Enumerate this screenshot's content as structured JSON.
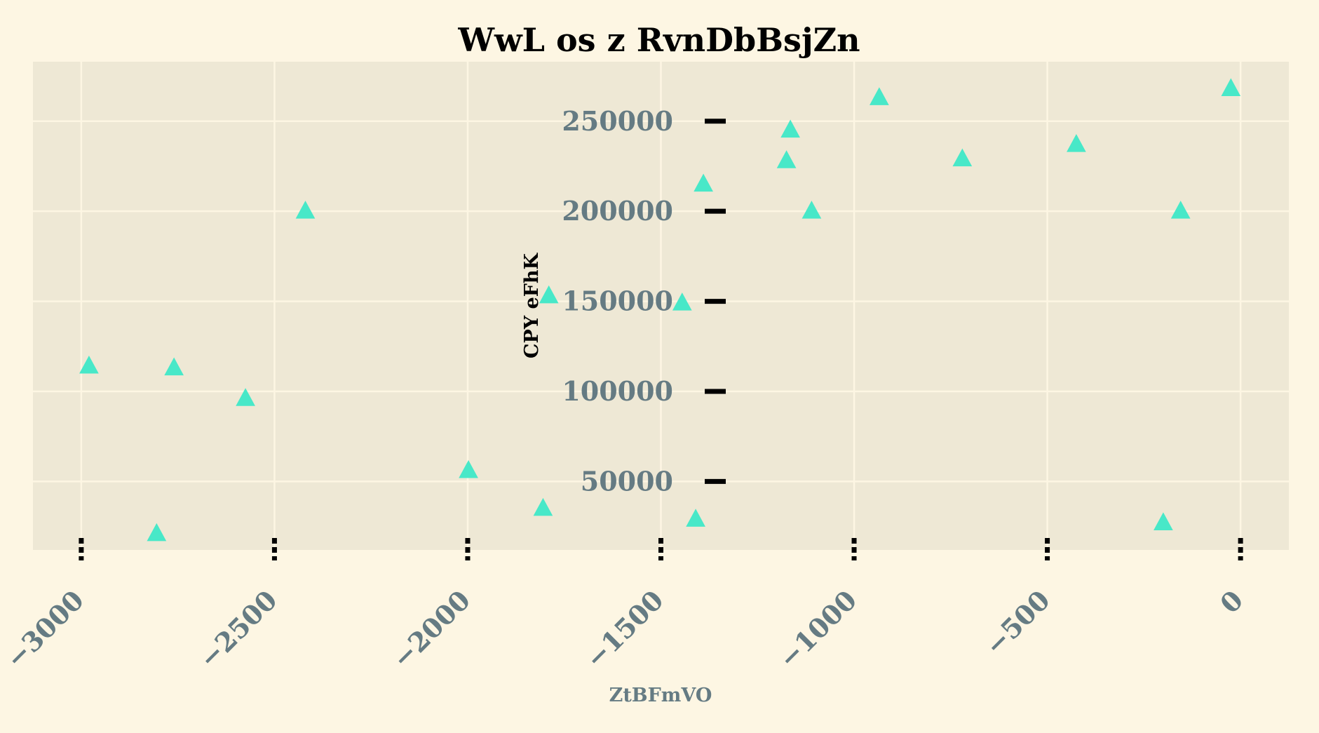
{
  "chart_data": {
    "type": "scatter",
    "title": "WwL os z  RvnDbBsjZn",
    "xlabel": "ZtBFmVO",
    "ylabel": "CPY eFhK",
    "xlim": [
      -3125,
      125
    ],
    "ylim": [
      12000,
      283000
    ],
    "xticks": [
      -3000,
      -2500,
      -2000,
      -1500,
      -1000,
      -500,
      0
    ],
    "xtick_labels": [
      "−3000",
      "−2500",
      "−2000",
      "−1500",
      "−1000",
      "−500",
      "0"
    ],
    "yticks": [
      50000,
      100000,
      150000,
      200000,
      250000
    ],
    "ytick_labels": [
      "50000",
      "100000",
      "150000",
      "200000",
      "250000"
    ],
    "grid": true,
    "marker": "triangle",
    "colors": {
      "background": "#fdf6e3",
      "plot_area": "#eee8d5",
      "grid": "#fdf6e3",
      "marker": "#48e8c8",
      "tick_label": "#657b83",
      "tick_mark": "#000000"
    },
    "series": [
      {
        "points": [
          [
            -2980,
            114000
          ],
          [
            -2805,
            21000
          ],
          [
            -2760,
            113000
          ],
          [
            -2575,
            96000
          ],
          [
            -2420,
            200000
          ],
          [
            -1998,
            56000
          ],
          [
            -1805,
            35000
          ],
          [
            -1790,
            153000
          ],
          [
            -1445,
            149000
          ],
          [
            -1410,
            29000
          ],
          [
            -1390,
            215000
          ],
          [
            -1175,
            228000
          ],
          [
            -1165,
            245000
          ],
          [
            -1110,
            200000
          ],
          [
            -935,
            263000
          ],
          [
            -720,
            229000
          ],
          [
            -425,
            237000
          ],
          [
            -200,
            27000
          ],
          [
            -155,
            200000
          ],
          [
            -25,
            268000
          ]
        ]
      }
    ]
  }
}
